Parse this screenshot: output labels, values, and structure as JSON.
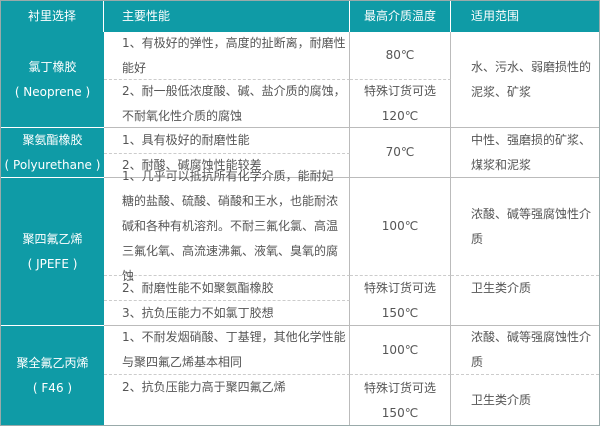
{
  "header": {
    "col_lining": "衬里选择",
    "col_properties": "主要性能",
    "col_temp": "最高介质温度",
    "col_scope": "适用范围"
  },
  "rows": [
    {
      "name": "氯丁橡胶",
      "name_en": "( Neoprene )",
      "p1": "1、有极好的弹性，高度的扯断离，耐磨性能好",
      "p2": "2、耐一般低浓度酸、碱、盐介质的腐蚀，不耐氧化性介质的腐蚀",
      "t1": "80℃",
      "t2a": "特殊订货可选",
      "t2b": "120℃",
      "s1": "水、污水、弱磨损性的泥浆、矿浆"
    },
    {
      "name": "聚氨酯橡胶",
      "name_en": "( Polyurethane )",
      "p1": "1、具有极好的耐磨性能",
      "p2": "2、耐酸、碱腐蚀性能较差",
      "t1": "70℃",
      "s1": "中性、强磨损的矿浆、煤浆和泥浆"
    },
    {
      "name": "聚四氟乙烯",
      "name_en": "( JPEFE )",
      "p1": "1、几乎可以抵抗所有化学介质，能耐妃糖的盐酸、硫酸、硝酸和王水，也能耐浓碱和各种有机溶剂。不耐三氟化氯、高温三氟化氧、高流速沸氟、液氧、臭氧的腐蚀",
      "p2": "2、耐磨性能不如聚氨酯橡胶",
      "p3": "3、抗负压能力不如氯丁胶想",
      "t1": "100℃",
      "t2a": "特殊订货可选",
      "t2b": "150℃",
      "s1": "浓酸、碱等强腐蚀性介质",
      "s2": "卫生类介质"
    },
    {
      "name": "聚全氟乙丙烯",
      "name_en": "( F46 )",
      "p1": "1、不耐发烟硝酸、丁基锂，其他化学性能与聚四氟乙烯基本相同",
      "p2": "2、抗负压能力高于聚四氟乙烯",
      "t1": "100℃",
      "t2a": "特殊订货可选",
      "t2b": "150℃",
      "s1": "浓酸、碱等强腐蚀性介质",
      "s2": "卫生类介质"
    }
  ]
}
